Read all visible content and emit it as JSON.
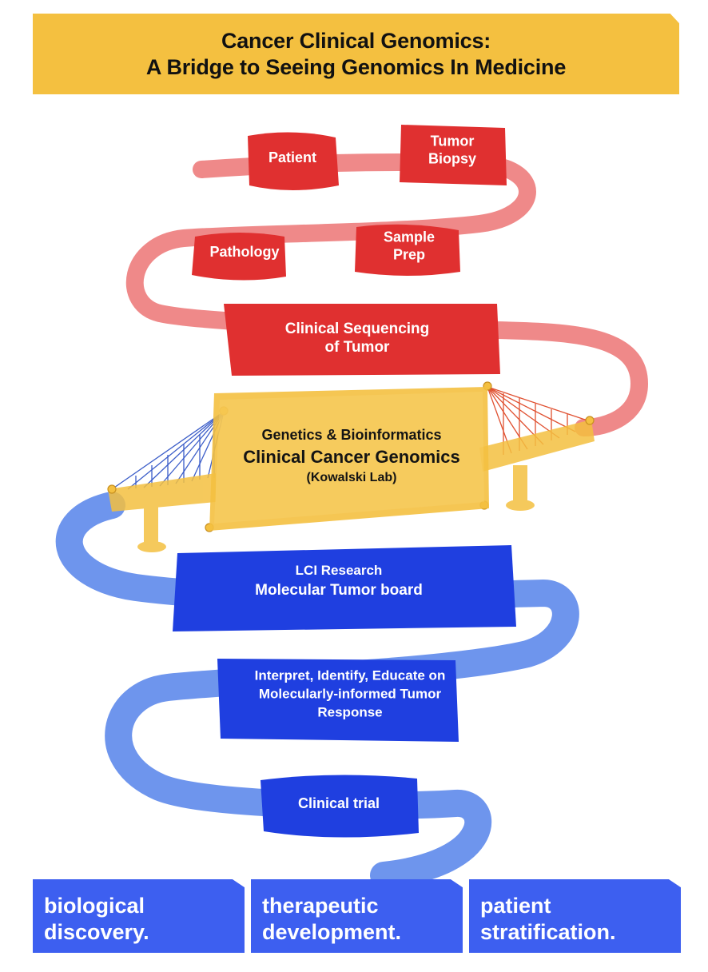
{
  "title": {
    "line1": "Cancer Clinical Genomics:",
    "line2": "A Bridge to Seeing Genomics In Medicine"
  },
  "steps": {
    "patient": "Patient",
    "tumor_biopsy_1": "Tumor",
    "tumor_biopsy_2": "Biopsy",
    "pathology": "Pathology",
    "sample_prep_1": "Sample",
    "sample_prep_2": "Prep",
    "sequencing_1": "Clinical Sequencing",
    "sequencing_2": "of Tumor",
    "bridge_1": "Genetics & Bioinformatics",
    "bridge_2": "Clinical Cancer Genomics",
    "bridge_3": "(Kowalski Lab)",
    "mtb_1": "LCI Research",
    "mtb_2": "Molecular Tumor board",
    "interpret_1": "Interpret, Identify, Educate on",
    "interpret_2": "Molecularly-informed Tumor",
    "interpret_3": "Response",
    "trial": "Clinical trial"
  },
  "outcomes": [
    {
      "line1": "biological",
      "line2": "discovery."
    },
    {
      "line1": "therapeutic",
      "line2": "development."
    },
    {
      "line1": "patient",
      "line2": "stratification."
    }
  ],
  "colors": {
    "red": "#e03030",
    "yellow": "#f4c040",
    "blue": "#1f3fe0",
    "box_blue": "#3d5ff0"
  }
}
